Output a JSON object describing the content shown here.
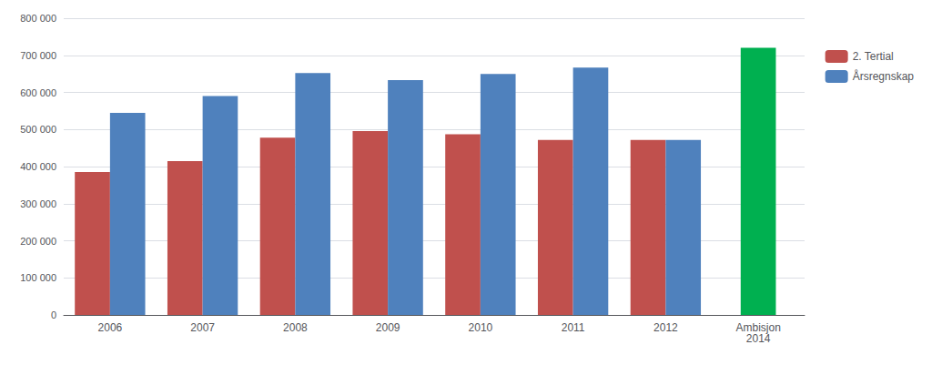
{
  "chart_data": {
    "type": "bar",
    "categories": [
      "2006",
      "2007",
      "2008",
      "2009",
      "2010",
      "2011",
      "2012",
      "Ambisjon\n2014"
    ],
    "series": [
      {
        "name": "2. Tertial",
        "color": "#C0504D",
        "values": [
          385000,
          415000,
          478000,
          496000,
          487000,
          472000,
          472000,
          null
        ]
      },
      {
        "name": "Årsregnskap",
        "color": "#4F81BD",
        "values": [
          545000,
          590000,
          652000,
          633000,
          650000,
          667000,
          472000,
          null
        ]
      },
      {
        "color": "#00B050",
        "values": [
          null,
          null,
          null,
          null,
          null,
          null,
          null,
          720000
        ]
      }
    ],
    "ylim": [
      0,
      800000
    ],
    "yticks": [
      0,
      {
        "value": 100000,
        "label": "100 000"
      },
      {
        "value": 200000,
        "label": "200 000"
      },
      {
        "value": 300000,
        "label": "300 000"
      },
      {
        "value": 400000,
        "label": "400 000"
      },
      {
        "value": 500000,
        "label": "500 000"
      },
      {
        "value": 600000,
        "label": "600 000"
      },
      {
        "value": 700000,
        "label": "700 000"
      },
      {
        "value": 800000,
        "label": "800 000"
      }
    ],
    "grid": true,
    "legend": "right"
  }
}
